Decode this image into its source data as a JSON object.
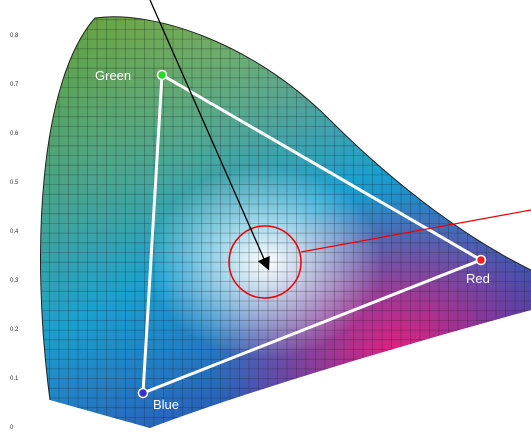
{
  "axis": {
    "y_labels": [
      "0.8",
      "0.7",
      "0.6",
      "0.5",
      "0.4",
      "0.3",
      "0.2",
      "0.1",
      "0"
    ]
  },
  "vertices": [
    {
      "label": "Green"
    },
    {
      "label": "Red"
    },
    {
      "label": "Blue"
    }
  ]
}
